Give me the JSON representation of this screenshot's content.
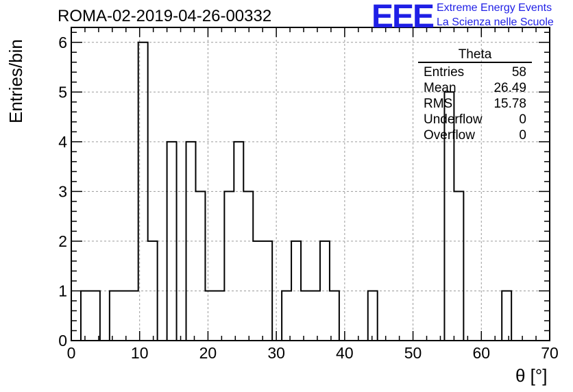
{
  "chart_data": {
    "type": "bar",
    "title": "ROMA-02-2019-04-26-00332",
    "xlabel": "θ [°]",
    "ylabel": "Entries/bin",
    "xlim": [
      0,
      70
    ],
    "ylim": [
      0,
      6.3
    ],
    "grid": true,
    "x_ticks": [
      0,
      10,
      20,
      30,
      40,
      50,
      60,
      70
    ],
    "y_ticks": [
      0,
      1,
      2,
      3,
      4,
      5,
      6
    ],
    "bin_width": 1.4,
    "bin_edges_start": 1.4,
    "bin_values": [
      1,
      1,
      0,
      1,
      1,
      1,
      6,
      2,
      0,
      4,
      0,
      4,
      3,
      1,
      1,
      3,
      4,
      3,
      2,
      2,
      0,
      1,
      2,
      1,
      1,
      2,
      1,
      0,
      0,
      0,
      1,
      0,
      0,
      0,
      0,
      0,
      0,
      0,
      5,
      3,
      0,
      0,
      0,
      0,
      1
    ]
  },
  "stats_box": {
    "name": "Theta",
    "rows": [
      {
        "label": "Entries",
        "value": "58"
      },
      {
        "label": "Mean",
        "value": "26.49"
      },
      {
        "label": "RMS",
        "value": "15.78"
      },
      {
        "label": "Underflow",
        "value": "0"
      },
      {
        "label": "Overflow",
        "value": "0"
      }
    ]
  },
  "logo": {
    "mark": "EEE",
    "line1": "Extreme Energy Events",
    "line2": "La Scienza nelle Scuole",
    "color": "#1f1fe6"
  }
}
